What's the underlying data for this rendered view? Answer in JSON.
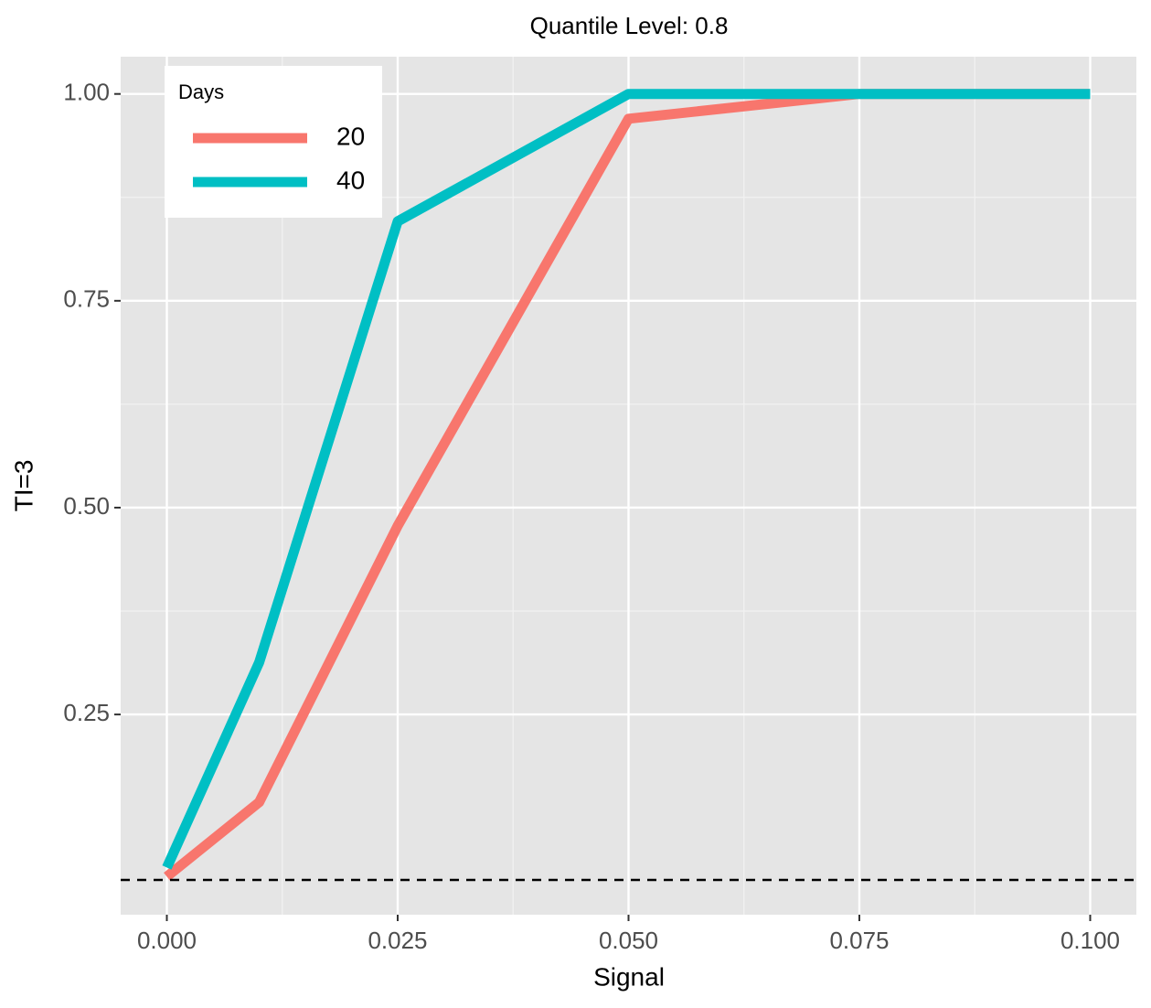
{
  "chart_data": {
    "type": "line",
    "title": "Quantile Level: 0.8",
    "x_label": "Signal",
    "y_label": "TI=3",
    "x": [
      0,
      0.01,
      0.025,
      0.05,
      0.075,
      0.1
    ],
    "series": [
      {
        "name": "20",
        "color": "#F8766D",
        "values": [
          0.054,
          0.144,
          0.478,
          0.97,
          1.0,
          1.0
        ]
      },
      {
        "name": "40",
        "color": "#00BFC4",
        "values": [
          0.065,
          0.313,
          0.846,
          1.0,
          1.0,
          1.0
        ]
      }
    ],
    "legend_title": "Days",
    "legend_position": "top-left",
    "hline": 0.05,
    "xlim": [
      -0.005,
      0.105
    ],
    "ylim": [
      0.008,
      1.045
    ],
    "xticks": [
      {
        "value": 0,
        "label": "0.000"
      },
      0.025,
      {
        "value": 0.05,
        "label": "0.050"
      },
      0.075,
      {
        "value": 0.1,
        "label": "0.100"
      }
    ],
    "yticks": [
      0.25,
      {
        "value": 0.5,
        "label": "0.50"
      },
      0.75,
      {
        "value": 1,
        "label": "1.00"
      }
    ],
    "grid": true
  }
}
